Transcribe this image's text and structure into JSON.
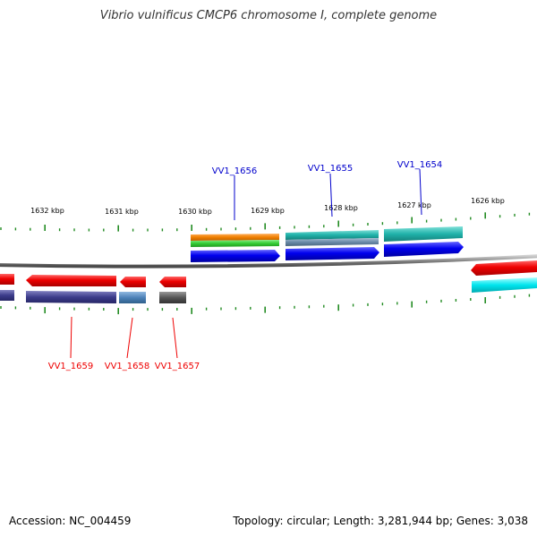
{
  "title": "Vibrio vulnificus CMCP6 chromosome I, complete genome",
  "footer": {
    "accession": "Accession: NC_004459",
    "stats": "Topology: circular; Length: 3,281,944 bp; Genes: 3,038"
  },
  "ticks": [
    "1632 kbp",
    "1631 kbp",
    "1630 kbp",
    "1629 kbp",
    "1628 kbp",
    "1627 kbp",
    "1626 kbp"
  ],
  "genes": {
    "forward": [
      {
        "label": "VV1_1656",
        "color": "#0000cc"
      },
      {
        "label": "VV1_1655",
        "color": "#0000cc"
      },
      {
        "label": "VV1_1654",
        "color": "#0000cc"
      }
    ],
    "reverse": [
      {
        "label": "VV1_1659",
        "color": "#ee0000"
      },
      {
        "label": "VV1_1658",
        "color": "#ee0000"
      },
      {
        "label": "VV1_1657",
        "color": "#ee0000"
      }
    ]
  },
  "colors": {
    "backbone": "#808080",
    "tick": "#228b22",
    "cds_forward": "#0000ee",
    "cds_reverse": "#ee0000",
    "orange": "#f08000",
    "green": "#33cc33",
    "teal": "#20b2aa",
    "steel": "#6a8aa8",
    "navy": "#3b3b8a",
    "cyan": "#00e5ee",
    "dark_gray": "#555555"
  }
}
